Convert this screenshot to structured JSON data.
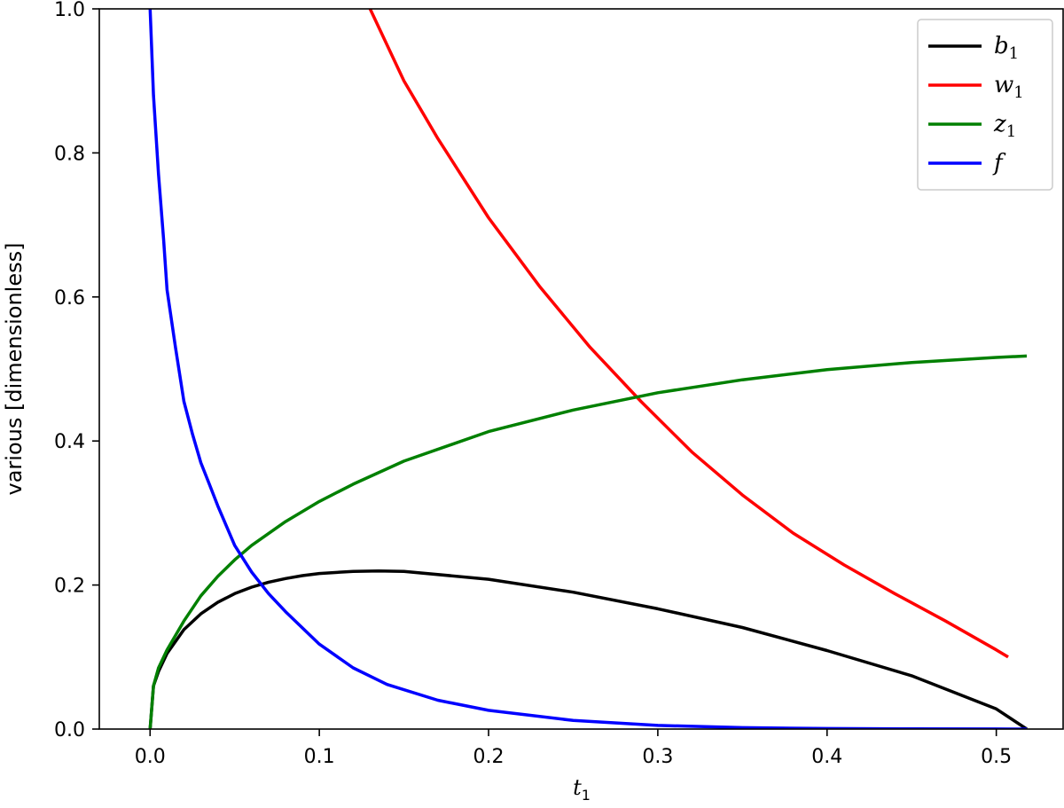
{
  "chart_data": {
    "type": "line",
    "xlabel": "t",
    "xlabel_sub": "1",
    "ylabel": "various [dimensionless]",
    "xlim": [
      -0.03,
      0.54
    ],
    "ylim": [
      0.0,
      1.0
    ],
    "xticks": [
      "0.0",
      "0.1",
      "0.2",
      "0.3",
      "0.4",
      "0.5"
    ],
    "yticks": [
      "0.0",
      "0.2",
      "0.4",
      "0.6",
      "0.8",
      "1.0"
    ],
    "grid": false,
    "legend_position": "top-right",
    "series": [
      {
        "name": "b",
        "name_sub": "1",
        "color": "#000000",
        "x": [
          0.0,
          0.002,
          0.005,
          0.01,
          0.02,
          0.03,
          0.04,
          0.05,
          0.06,
          0.07,
          0.08,
          0.09,
          0.1,
          0.12,
          0.135,
          0.15,
          0.2,
          0.25,
          0.3,
          0.35,
          0.4,
          0.45,
          0.5,
          0.518
        ],
        "y": [
          0.0,
          0.06,
          0.08,
          0.105,
          0.138,
          0.16,
          0.176,
          0.188,
          0.197,
          0.204,
          0.209,
          0.213,
          0.216,
          0.219,
          0.2195,
          0.219,
          0.208,
          0.19,
          0.167,
          0.141,
          0.109,
          0.074,
          0.028,
          0.0
        ]
      },
      {
        "name": "w",
        "name_sub": "1",
        "color": "#ff0000",
        "x": [
          0.13,
          0.15,
          0.17,
          0.2,
          0.23,
          0.26,
          0.29,
          0.32,
          0.35,
          0.38,
          0.41,
          0.44,
          0.47,
          0.5,
          0.507
        ],
        "y": [
          1.0,
          0.9,
          0.82,
          0.71,
          0.615,
          0.53,
          0.455,
          0.385,
          0.325,
          0.272,
          0.228,
          0.188,
          0.15,
          0.11,
          0.1
        ]
      },
      {
        "name": "z",
        "name_sub": "1",
        "color": "#008000",
        "x": [
          0.0,
          0.002,
          0.005,
          0.01,
          0.02,
          0.03,
          0.04,
          0.05,
          0.06,
          0.08,
          0.1,
          0.12,
          0.15,
          0.2,
          0.25,
          0.3,
          0.35,
          0.4,
          0.45,
          0.5,
          0.518
        ],
        "y": [
          0.0,
          0.06,
          0.085,
          0.11,
          0.15,
          0.185,
          0.212,
          0.235,
          0.255,
          0.288,
          0.316,
          0.34,
          0.372,
          0.413,
          0.443,
          0.467,
          0.485,
          0.499,
          0.509,
          0.516,
          0.518
        ]
      },
      {
        "name": "f",
        "name_sub": "",
        "color": "#0000ff",
        "x": [
          0.0,
          0.002,
          0.005,
          0.008,
          0.01,
          0.015,
          0.02,
          0.025,
          0.03,
          0.035,
          0.04,
          0.05,
          0.06,
          0.07,
          0.08,
          0.1,
          0.12,
          0.14,
          0.17,
          0.2,
          0.25,
          0.3,
          0.35,
          0.4,
          0.45,
          0.5,
          0.518
        ],
        "y": [
          1.0,
          0.88,
          0.77,
          0.68,
          0.61,
          0.53,
          0.455,
          0.41,
          0.37,
          0.34,
          0.31,
          0.255,
          0.218,
          0.188,
          0.163,
          0.118,
          0.085,
          0.062,
          0.04,
          0.026,
          0.012,
          0.005,
          0.002,
          0.0008,
          0.0003,
          0.0001,
          0.0
        ]
      }
    ]
  }
}
